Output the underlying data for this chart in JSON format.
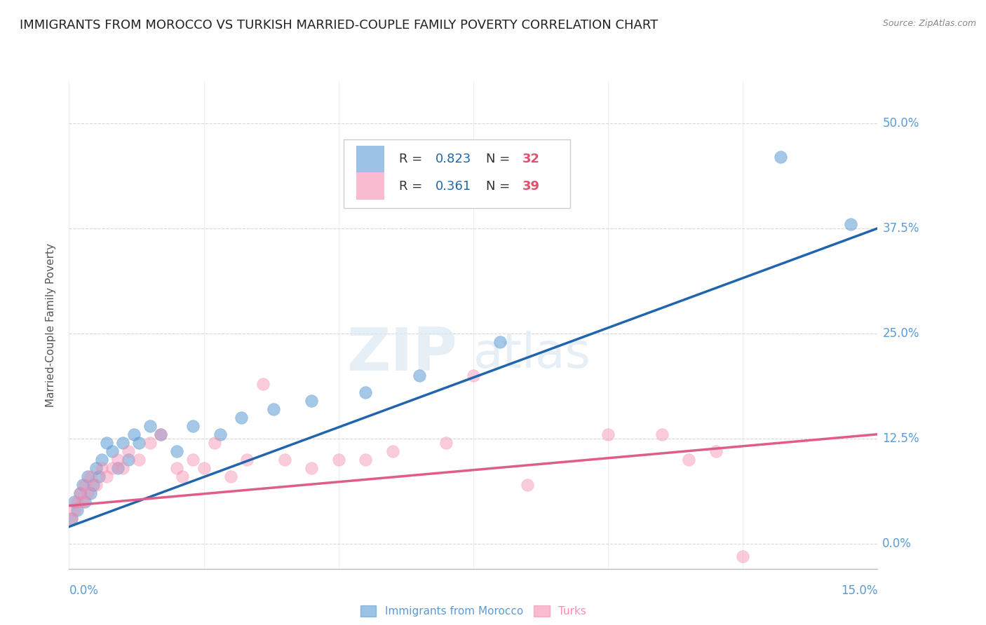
{
  "title": "IMMIGRANTS FROM MOROCCO VS TURKISH MARRIED-COUPLE FAMILY POVERTY CORRELATION CHART",
  "source": "Source: ZipAtlas.com",
  "ylabel": "Married-Couple Family Poverty",
  "xlim": [
    0.0,
    15.0
  ],
  "ylim": [
    -3.0,
    55.0
  ],
  "yticks": [
    0.0,
    12.5,
    25.0,
    37.5,
    50.0
  ],
  "xticks": [
    0.0,
    2.5,
    5.0,
    7.5,
    10.0,
    12.5,
    15.0
  ],
  "legend1_r": "0.823",
  "legend1_n": "32",
  "legend2_r": "0.361",
  "legend2_n": "39",
  "blue_color": "#5b9bd5",
  "pink_color": "#f48fb1",
  "blue_line_color": "#2166ac",
  "pink_line_color": "#e05c8a",
  "watermark_zip": "ZIP",
  "watermark_atlas": "atlas",
  "blue_scatter_x": [
    0.05,
    0.1,
    0.15,
    0.2,
    0.25,
    0.3,
    0.35,
    0.4,
    0.45,
    0.5,
    0.55,
    0.6,
    0.7,
    0.8,
    0.9,
    1.0,
    1.1,
    1.2,
    1.3,
    1.5,
    1.7,
    2.0,
    2.3,
    2.8,
    3.2,
    3.8,
    4.5,
    5.5,
    6.5,
    8.0,
    13.2,
    14.5
  ],
  "blue_scatter_y": [
    3.0,
    5.0,
    4.0,
    6.0,
    7.0,
    5.0,
    8.0,
    6.0,
    7.0,
    9.0,
    8.0,
    10.0,
    12.0,
    11.0,
    9.0,
    12.0,
    10.0,
    13.0,
    12.0,
    14.0,
    13.0,
    11.0,
    14.0,
    13.0,
    15.0,
    16.0,
    17.0,
    18.0,
    20.0,
    24.0,
    46.0,
    38.0
  ],
  "pink_scatter_x": [
    0.05,
    0.1,
    0.15,
    0.2,
    0.25,
    0.3,
    0.35,
    0.4,
    0.5,
    0.6,
    0.7,
    0.8,
    0.9,
    1.0,
    1.1,
    1.3,
    1.5,
    1.7,
    2.0,
    2.1,
    2.3,
    2.5,
    2.7,
    3.0,
    3.3,
    3.6,
    4.0,
    4.5,
    5.0,
    5.5,
    6.0,
    7.0,
    7.5,
    8.5,
    10.0,
    11.0,
    11.5,
    12.0,
    12.5
  ],
  "pink_scatter_y": [
    3.0,
    4.0,
    5.0,
    6.0,
    5.0,
    7.0,
    6.0,
    8.0,
    7.0,
    9.0,
    8.0,
    9.0,
    10.0,
    9.0,
    11.0,
    10.0,
    12.0,
    13.0,
    9.0,
    8.0,
    10.0,
    9.0,
    12.0,
    8.0,
    10.0,
    19.0,
    10.0,
    9.0,
    10.0,
    10.0,
    11.0,
    12.0,
    20.0,
    7.0,
    13.0,
    13.0,
    10.0,
    11.0,
    -1.5
  ],
  "blue_line_x": [
    0.0,
    15.0
  ],
  "blue_line_y": [
    2.0,
    37.5
  ],
  "pink_line_x": [
    0.0,
    15.0
  ],
  "pink_line_y": [
    4.5,
    13.0
  ],
  "background_color": "#ffffff",
  "grid_color": "#cccccc",
  "tick_color": "#5b9bd5",
  "r_label_color": "#2166ac",
  "n_label_color": "#e05070",
  "title_fontsize": 13,
  "axis_label_fontsize": 11,
  "tick_fontsize": 12,
  "legend_fontsize": 13
}
